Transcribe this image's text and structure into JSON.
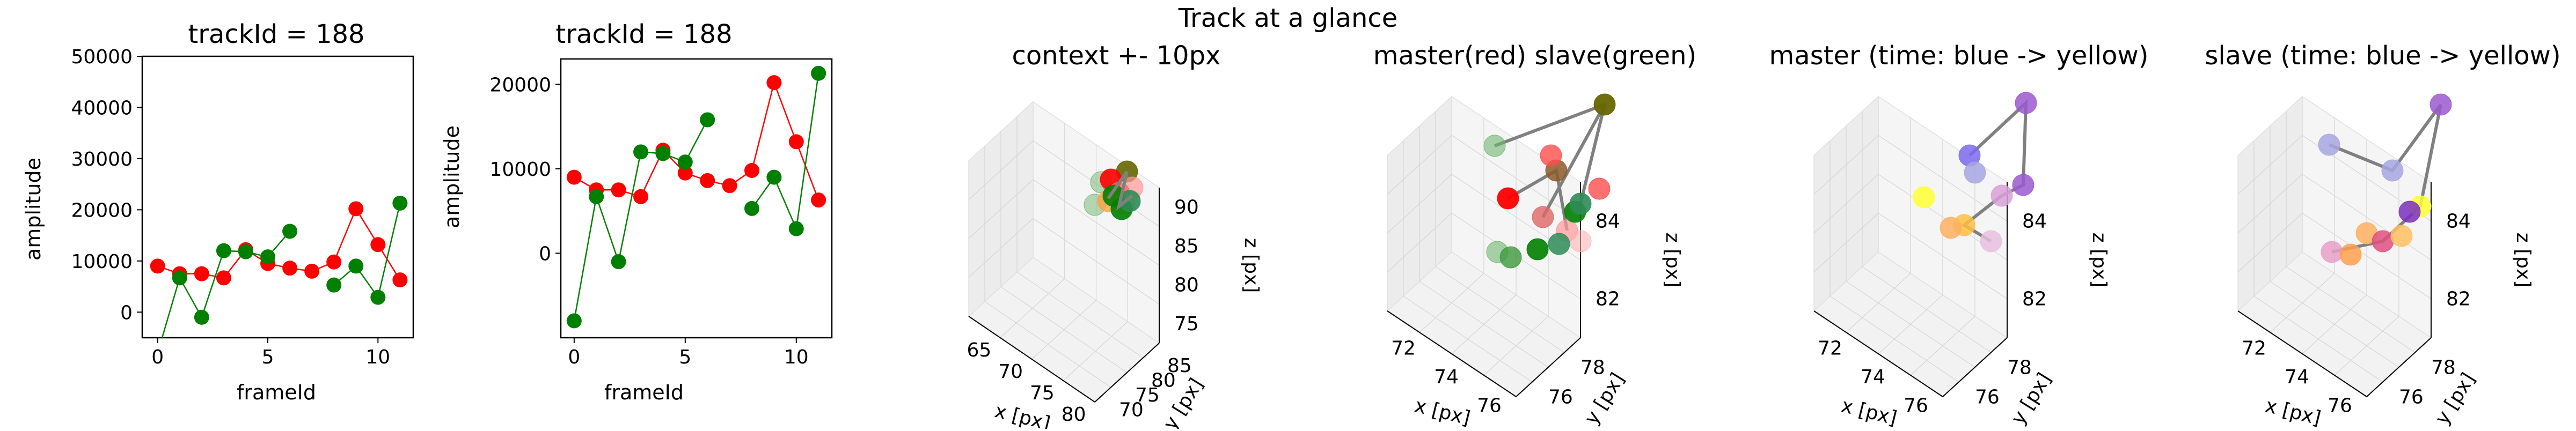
{
  "suptitle": "Track at a glance",
  "colors": {
    "red": "#ff0000",
    "green": "#008000",
    "connector": "#808080"
  },
  "chart_data": [
    {
      "type": "scatter",
      "title": "trackId = 188",
      "xlabel": "frameId",
      "ylabel": "amplitude",
      "xlim": [
        -0.7,
        11.6
      ],
      "ylim": [
        -5000,
        50000
      ],
      "xticks": [
        0,
        5,
        10
      ],
      "yticks": [
        0,
        10000,
        20000,
        30000,
        40000,
        50000
      ],
      "series": [
        {
          "color": "red",
          "x": [
            0,
            1,
            2,
            3,
            4,
            5,
            6,
            7,
            8,
            9,
            10,
            11
          ],
          "y": [
            9000,
            7500,
            7500,
            6700,
            12200,
            9500,
            8600,
            8000,
            9800,
            20200,
            13200,
            6300
          ]
        },
        {
          "color": "green",
          "x": [
            0,
            1,
            2,
            3,
            4,
            5,
            6,
            7,
            8,
            9,
            10,
            11
          ],
          "y": [
            -8000,
            6700,
            -1000,
            12000,
            11800,
            10800,
            15800,
            null,
            5300,
            9000,
            2900,
            21300
          ]
        }
      ]
    },
    {
      "type": "scatter",
      "title": "trackId = 188",
      "xlabel": "frameId",
      "ylabel": "amplitude",
      "xlim": [
        -0.6,
        11.6
      ],
      "ylim": [
        -10000,
        23000
      ],
      "xticks": [
        0,
        5,
        10
      ],
      "yticks": [
        0,
        10000,
        20000
      ],
      "series": [
        {
          "color": "red",
          "x": [
            0,
            1,
            2,
            3,
            4,
            5,
            6,
            7,
            8,
            9,
            10,
            11
          ],
          "y": [
            9000,
            7500,
            7500,
            6700,
            12200,
            9500,
            8600,
            8000,
            9800,
            20200,
            13200,
            6300
          ]
        },
        {
          "color": "green",
          "x": [
            0,
            1,
            2,
            3,
            4,
            5,
            6,
            7,
            8,
            9,
            10,
            11
          ],
          "y": [
            -8000,
            6700,
            -1000,
            12000,
            11800,
            10800,
            15800,
            null,
            5300,
            9000,
            2900,
            21300
          ]
        }
      ]
    },
    {
      "type": "scatter3d",
      "title": "context +- 10px",
      "xlabel": "x [px]",
      "ylabel": "y [px]",
      "zlabel": "z [px]",
      "xticks": [
        "65",
        "70",
        "75",
        "80"
      ],
      "yticks": [
        "70",
        "75",
        "80",
        "85"
      ],
      "zticks": [
        "75",
        "80",
        "85",
        "90"
      ]
    },
    {
      "type": "scatter3d",
      "title": "master(red) slave(green)",
      "xlabel": "x [px]",
      "ylabel": "y [px]",
      "zlabel": "z [px]",
      "xticks": [
        "72",
        "74",
        "76"
      ],
      "yticks": [
        "76",
        "78"
      ],
      "zticks": [
        "82",
        "84"
      ]
    },
    {
      "type": "scatter3d",
      "title": "master (time: blue -> yellow)",
      "xlabel": "x [px]",
      "ylabel": "y [px]",
      "zlabel": "z [px]",
      "xticks": [
        "72",
        "74",
        "76"
      ],
      "yticks": [
        "76",
        "78"
      ],
      "zticks": [
        "82",
        "84"
      ]
    },
    {
      "type": "scatter3d",
      "title": "slave (time: blue -> yellow)",
      "xlabel": "x [px]",
      "ylabel": "y [px]",
      "zlabel": "z [px]",
      "xticks": [
        "72",
        "74",
        "76"
      ],
      "yticks": [
        "76",
        "78"
      ],
      "zticks": [
        "82",
        "84"
      ]
    }
  ]
}
